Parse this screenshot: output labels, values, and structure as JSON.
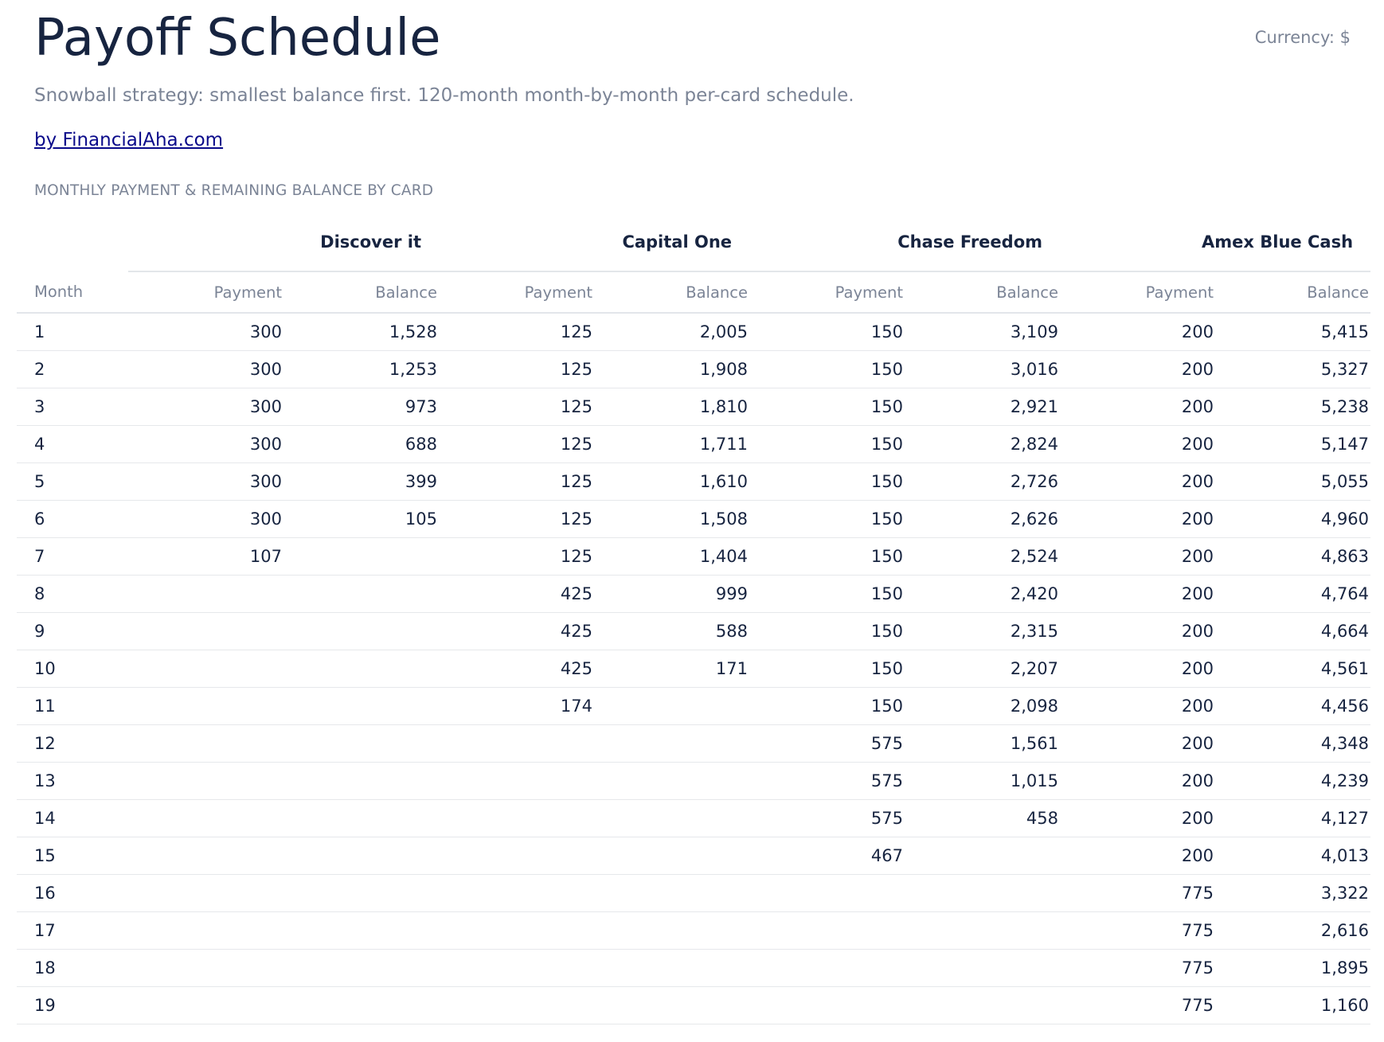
{
  "header": {
    "title": "Payoff Schedule",
    "currency_label": "Currency: $",
    "subtitle": "Snowball strategy: smallest balance first. 120-month month-by-month per-card schedule.",
    "link_text": "by FinancialAha.com",
    "section_label": "MONTHLY PAYMENT & REMAINING BALANCE BY CARD"
  },
  "table": {
    "cards": [
      "Discover it",
      "Capital One",
      "Chase Freedom",
      "Amex Blue Cash"
    ],
    "month_header": "Month",
    "payment_header": "Payment",
    "balance_header": "Balance",
    "rows": [
      {
        "month": "1",
        "cells": [
          "300",
          "1,528",
          "125",
          "2,005",
          "150",
          "3,109",
          "200",
          "5,415"
        ]
      },
      {
        "month": "2",
        "cells": [
          "300",
          "1,253",
          "125",
          "1,908",
          "150",
          "3,016",
          "200",
          "5,327"
        ]
      },
      {
        "month": "3",
        "cells": [
          "300",
          "973",
          "125",
          "1,810",
          "150",
          "2,921",
          "200",
          "5,238"
        ]
      },
      {
        "month": "4",
        "cells": [
          "300",
          "688",
          "125",
          "1,711",
          "150",
          "2,824",
          "200",
          "5,147"
        ]
      },
      {
        "month": "5",
        "cells": [
          "300",
          "399",
          "125",
          "1,610",
          "150",
          "2,726",
          "200",
          "5,055"
        ]
      },
      {
        "month": "6",
        "cells": [
          "300",
          "105",
          "125",
          "1,508",
          "150",
          "2,626",
          "200",
          "4,960"
        ]
      },
      {
        "month": "7",
        "cells": [
          "107",
          "",
          "125",
          "1,404",
          "150",
          "2,524",
          "200",
          "4,863"
        ]
      },
      {
        "month": "8",
        "cells": [
          "",
          "",
          "425",
          "999",
          "150",
          "2,420",
          "200",
          "4,764"
        ]
      },
      {
        "month": "9",
        "cells": [
          "",
          "",
          "425",
          "588",
          "150",
          "2,315",
          "200",
          "4,664"
        ]
      },
      {
        "month": "10",
        "cells": [
          "",
          "",
          "425",
          "171",
          "150",
          "2,207",
          "200",
          "4,561"
        ]
      },
      {
        "month": "11",
        "cells": [
          "",
          "",
          "174",
          "",
          "150",
          "2,098",
          "200",
          "4,456"
        ]
      },
      {
        "month": "12",
        "cells": [
          "",
          "",
          "",
          "",
          "575",
          "1,561",
          "200",
          "4,348"
        ]
      },
      {
        "month": "13",
        "cells": [
          "",
          "",
          "",
          "",
          "575",
          "1,015",
          "200",
          "4,239"
        ]
      },
      {
        "month": "14",
        "cells": [
          "",
          "",
          "",
          "",
          "575",
          "458",
          "200",
          "4,127"
        ]
      },
      {
        "month": "15",
        "cells": [
          "",
          "",
          "",
          "",
          "467",
          "",
          "200",
          "4,013"
        ]
      },
      {
        "month": "16",
        "cells": [
          "",
          "",
          "",
          "",
          "",
          "",
          "775",
          "3,322"
        ]
      },
      {
        "month": "17",
        "cells": [
          "",
          "",
          "",
          "",
          "",
          "",
          "775",
          "2,616"
        ]
      },
      {
        "month": "18",
        "cells": [
          "",
          "",
          "",
          "",
          "",
          "",
          "775",
          "1,895"
        ]
      },
      {
        "month": "19",
        "cells": [
          "",
          "",
          "",
          "",
          "",
          "",
          "775",
          "1,160"
        ]
      }
    ]
  },
  "colors": {
    "title": "#172440",
    "muted": "#7b8496",
    "link": "#0a0a8a",
    "rule": "#e3e6ea"
  }
}
